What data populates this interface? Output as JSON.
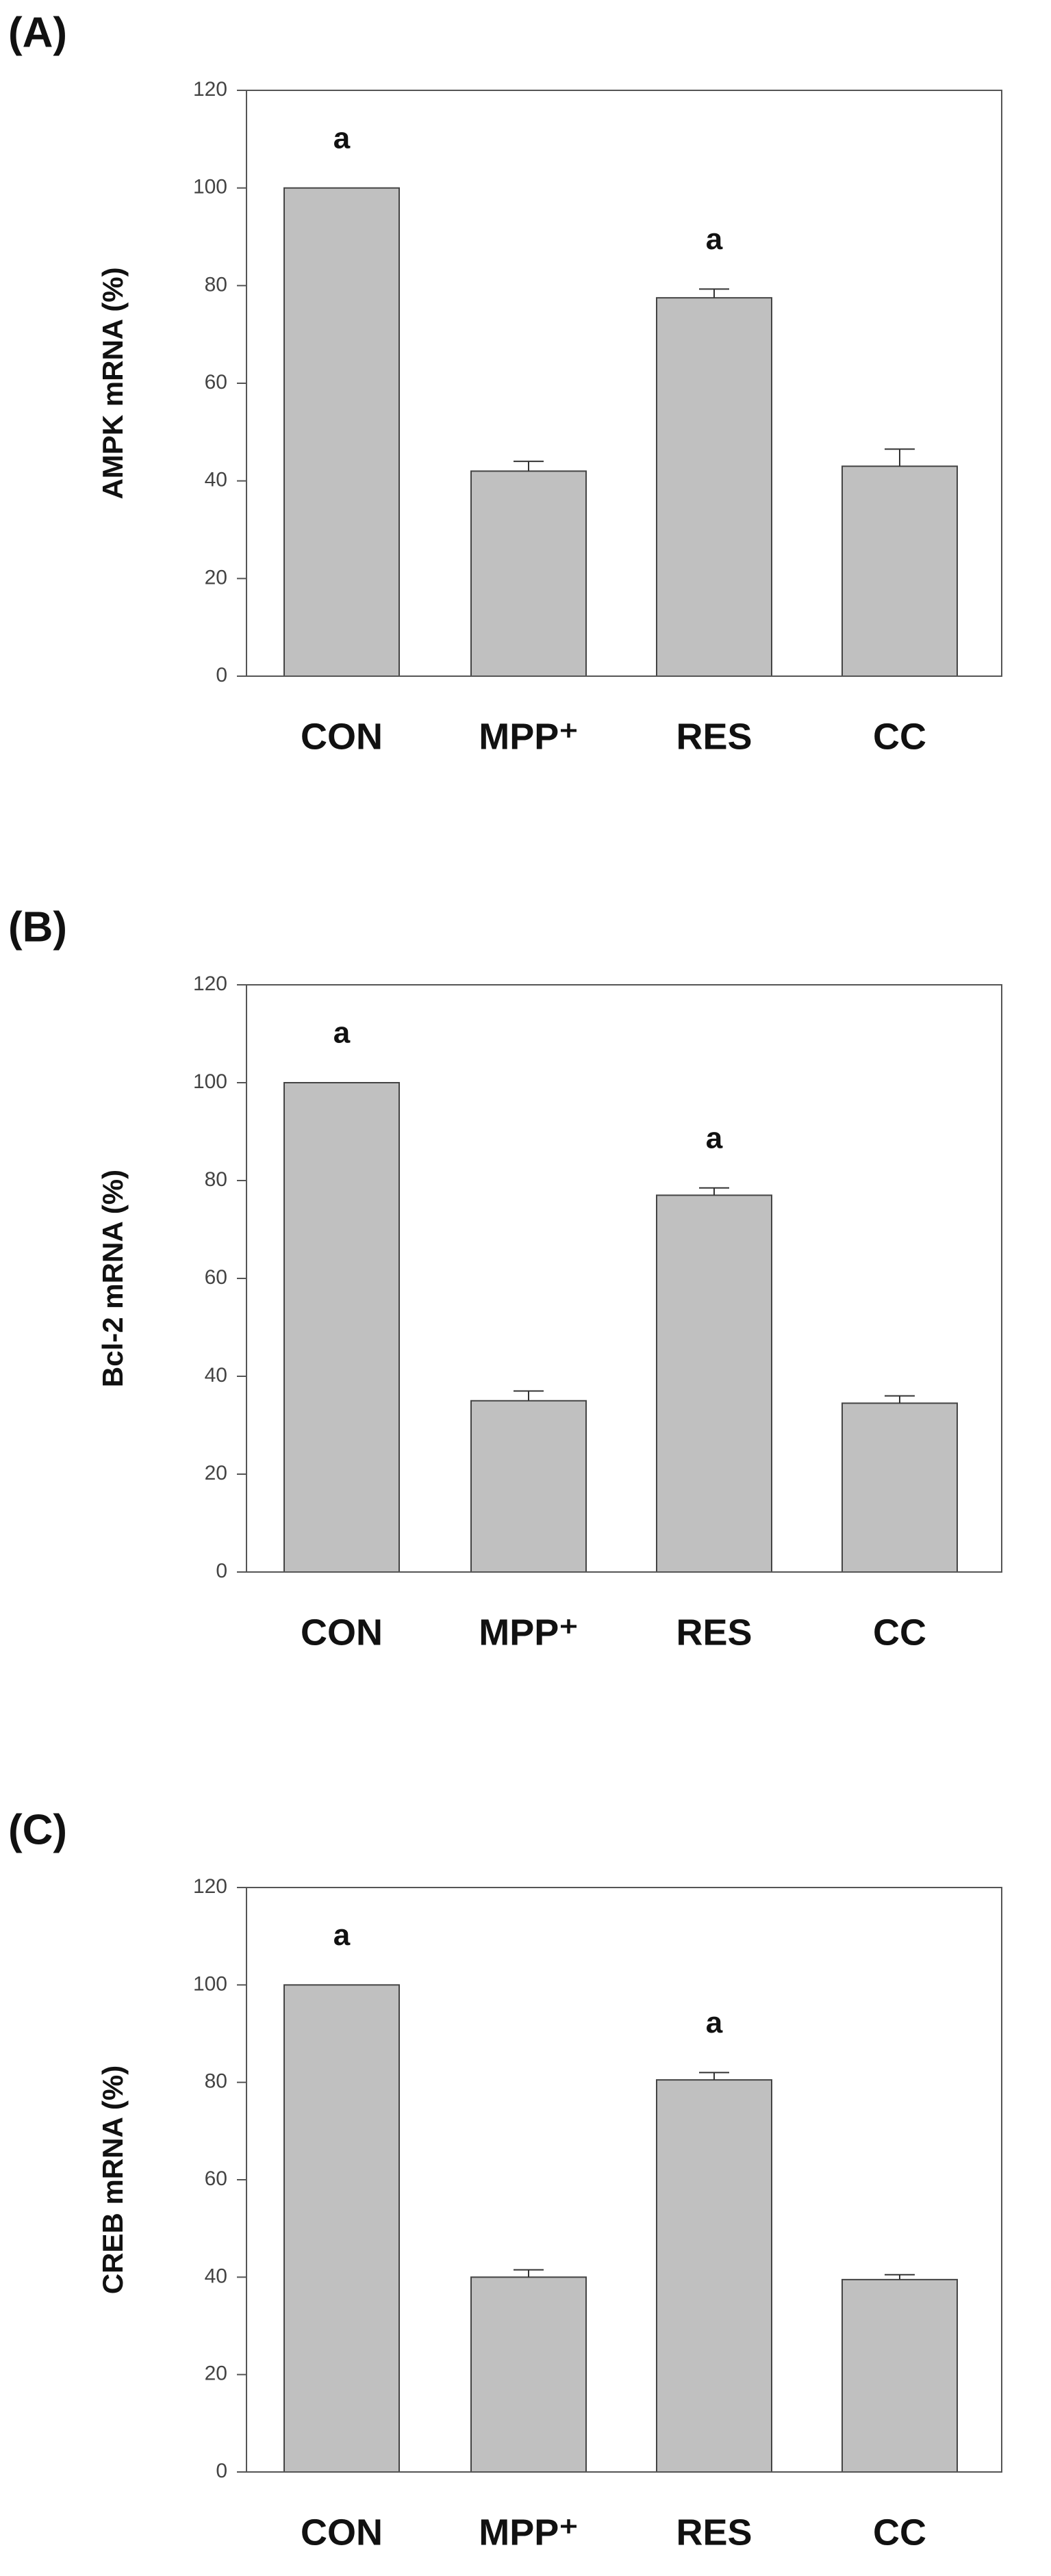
{
  "chart_data": [
    {
      "type": "bar",
      "panel": "(A)",
      "ylabel": "AMPK mRNA (%)",
      "categories": [
        "CON",
        "MPP⁺",
        "RES",
        "CC"
      ],
      "values": [
        100,
        42,
        77.5,
        43
      ],
      "errors": [
        0,
        2,
        1.8,
        3.5
      ],
      "color": "#c0c0c0",
      "ylim": [
        0,
        120
      ],
      "yticks": [
        0,
        20,
        40,
        60,
        80,
        100,
        120
      ],
      "annotations": [
        {
          "text": "a",
          "category": "CON"
        },
        {
          "text": "a",
          "category": "RES"
        }
      ]
    },
    {
      "type": "bar",
      "panel": "(B)",
      "ylabel": "Bcl-2 mRNA (%)",
      "categories": [
        "CON",
        "MPP⁺",
        "RES",
        "CC"
      ],
      "values": [
        100,
        35,
        77,
        34.5
      ],
      "errors": [
        0,
        2,
        1.5,
        1.5
      ],
      "color": "#c0c0c0",
      "ylim": [
        0,
        120
      ],
      "yticks": [
        0,
        20,
        40,
        60,
        80,
        100,
        120
      ],
      "annotations": [
        {
          "text": "a",
          "category": "CON"
        },
        {
          "text": "a",
          "category": "RES"
        }
      ]
    },
    {
      "type": "bar",
      "panel": "(C)",
      "ylabel": "CREB mRNA (%)",
      "categories": [
        "CON",
        "MPP⁺",
        "RES",
        "CC"
      ],
      "values": [
        100,
        40,
        80.5,
        39.5
      ],
      "errors": [
        0,
        1.5,
        1.5,
        1
      ],
      "color": "#c0c0c0",
      "ylim": [
        0,
        120
      ],
      "yticks": [
        0,
        20,
        40,
        60,
        80,
        100,
        120
      ],
      "annotations": [
        {
          "text": "a",
          "category": "CON"
        },
        {
          "text": "a",
          "category": "RES"
        }
      ]
    }
  ]
}
